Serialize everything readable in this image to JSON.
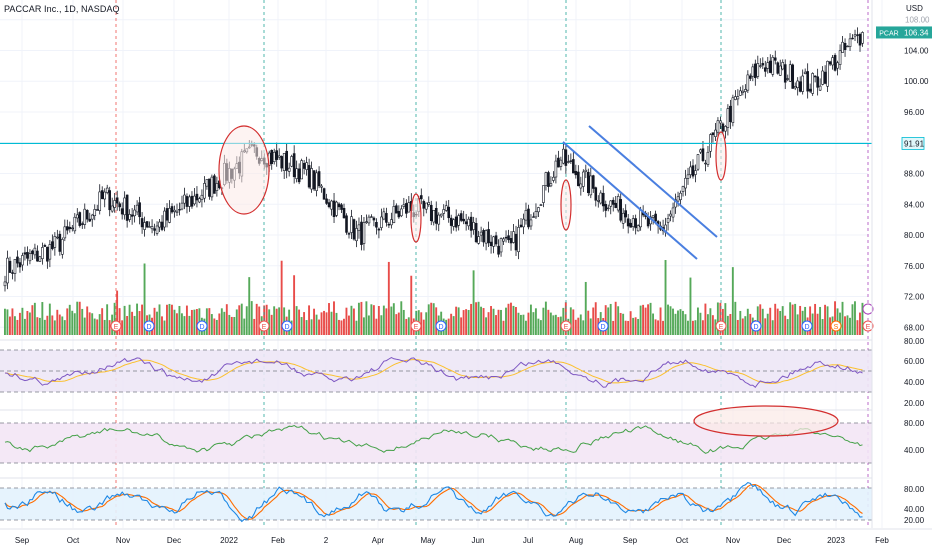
{
  "header": {
    "title": "PACCAR Inc., 1D, NASDAQ",
    "currency": "USD"
  },
  "price_axis": {
    "ticks": [
      "108.00",
      "104.00",
      "100.00",
      "96.00",
      "92.00",
      "88.00",
      "84.00",
      "80.00",
      "76.00",
      "72.00",
      "68.00"
    ],
    "ticker_badge": "PCAR",
    "last_price": "106.34",
    "level_badge": "91.91"
  },
  "time_axis": {
    "labels": [
      "Sep",
      "Oct",
      "Nov",
      "Dec",
      "2022",
      "Feb",
      "2",
      "Apr",
      "May",
      "Jun",
      "Jul",
      "Aug",
      "Sep",
      "Oct",
      "Nov",
      "Dec",
      "2023",
      "Feb"
    ]
  },
  "indicator_axes": {
    "rsi": [
      "80.00",
      "60.00",
      "40.00",
      "20.00"
    ],
    "mfi": [
      "80.00",
      "40.00"
    ],
    "stoch": [
      "80.00",
      "40.00",
      "20.00"
    ]
  },
  "event_markers": {
    "earnings": "E",
    "dividend": "D",
    "split": "S"
  },
  "colors": {
    "up": "#26a69a",
    "down": "#ef5350",
    "candle": "#131722",
    "volume_up": "#43a047",
    "volume_down": "#e53935",
    "horizontal_level": "#00bcd4",
    "channel": "#4a7fe0",
    "ellipse_stroke": "#d32f2f",
    "ellipse_fill": "#fbe9e7",
    "rsi_line": "#7e57c2",
    "rsi_ma": "#fbc02d",
    "rsi_band": "#ede7f6",
    "mfi_line": "#43a047",
    "mfi_band": "#f3e5f5",
    "stoch_k": "#1e88e5",
    "stoch_d": "#ff6d00",
    "stoch_band": "#e3f2fd",
    "ticker_badge": "#26a69a",
    "level_badge_bg": "#e0f7fa",
    "grid": "#f0f3fa"
  },
  "chart_data": {
    "type": "line",
    "title": "PACCAR Inc., 1D, NASDAQ",
    "description_hidden": "",
    "x": [
      "Sep",
      "Oct",
      "Nov",
      "Dec",
      "2022",
      "Feb",
      "2",
      "Apr",
      "May",
      "Jun",
      "Jul",
      "Aug",
      "Sep",
      "Oct",
      "Nov",
      "Dec",
      "2023",
      "Feb"
    ],
    "series": [
      {
        "name": "PCAR",
        "values": [
          75.5,
          78.5,
          85.0,
          81.0,
          86.0,
          91.0,
          88.0,
          80.0,
          83.5,
          82.0,
          78.0,
          90.0,
          84.0,
          80.5,
          92.0,
          102.5,
          99.5,
          106.3
        ]
      }
    ],
    "ylim": [
      67,
      109
    ],
    "horizontal_level": 91.91,
    "last_price": 106.34,
    "grid": true,
    "indicators": [
      {
        "name": "rsi",
        "ylim": [
          20,
          80
        ],
        "guides": [
          30,
          50,
          70
        ]
      },
      {
        "name": "mfi",
        "ylim": [
          20,
          90
        ],
        "guides": [
          80,
          20
        ]
      },
      {
        "name": "stoch",
        "ylim": [
          0,
          100
        ],
        "guides": [
          80,
          20
        ]
      }
    ]
  }
}
